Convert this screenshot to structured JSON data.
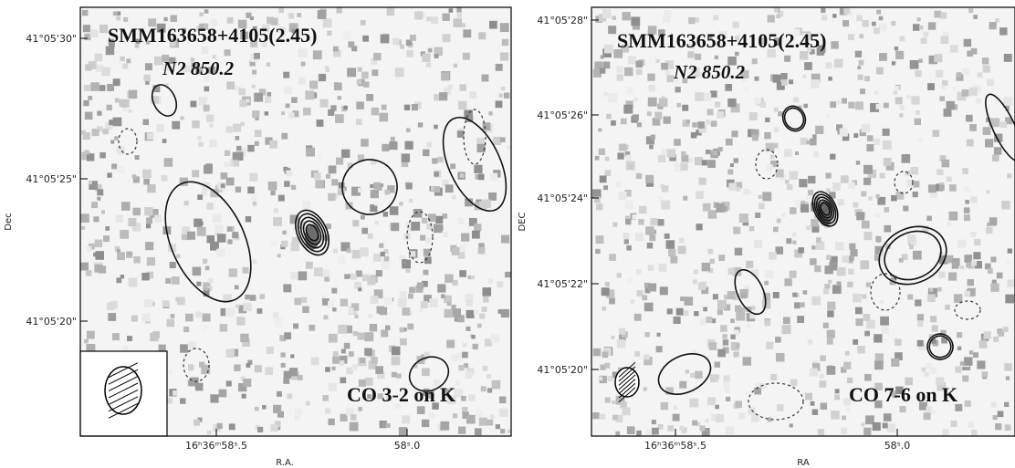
{
  "panels": [
    {
      "title": "SMM163658+4105(2.45)",
      "subtitle": "N2 850.2",
      "label": "CO 3-2 on K",
      "x_axis_label": "R.A.",
      "y_axis_label": "Dec",
      "x_tick_labels": [
        "16ʰ36ᵐ58ˢ.5",
        "58ˢ.0"
      ],
      "y_tick_labels": [
        "41°05'30\"",
        "41°05'25\"",
        "41°05'20\""
      ]
    },
    {
      "title": "SMM163658+4105(2.45)",
      "subtitle": "N2 850.2",
      "label": "CO 7-6 on K",
      "x_axis_label": "RA",
      "y_axis_label": "DEC",
      "x_tick_labels": [
        "16ʰ36ᵐ58ˢ.5",
        "58ˢ.0"
      ],
      "y_tick_labels": [
        "41°05'28\"",
        "41°05'26\"",
        "41°05'24\"",
        "41°05'22\"",
        "41°05'20\""
      ]
    }
  ]
}
